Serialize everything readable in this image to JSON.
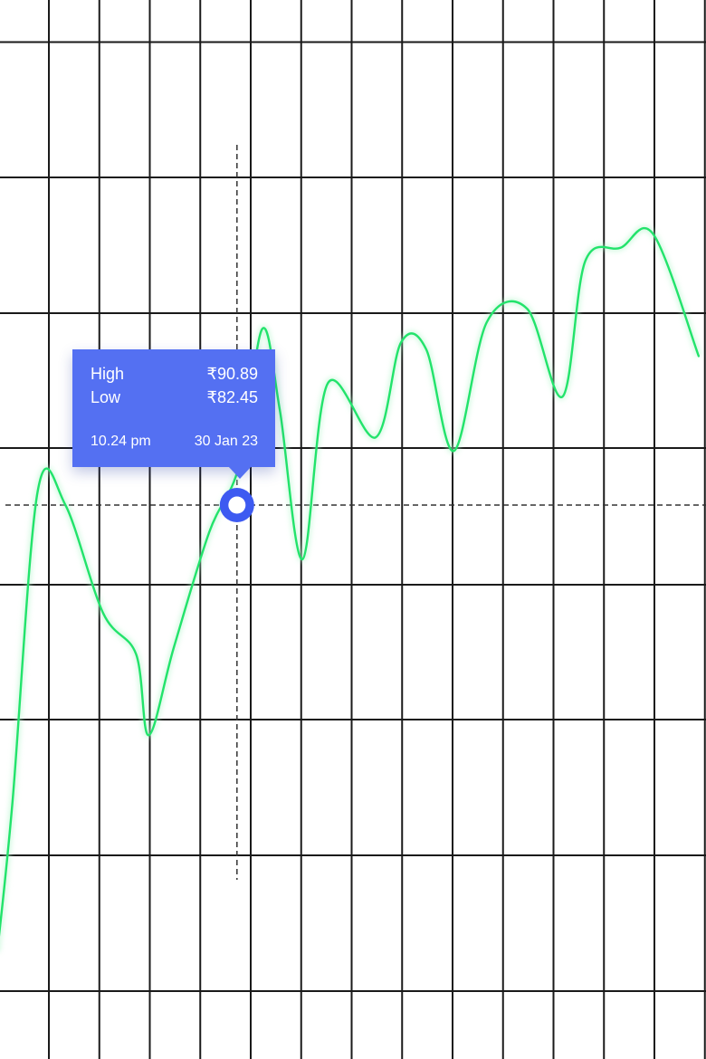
{
  "tooltip": {
    "high_label": "High",
    "high_value": "₹90.89",
    "low_label": "Low",
    "low_value": "₹82.45",
    "time": "10.24 pm",
    "date": "30 Jan 23"
  },
  "colors": {
    "line": "#22e36b",
    "line_glow": "#aef5c8",
    "tooltip_bg": "#5470f2",
    "marker": "#3d5af1",
    "grid": "#1a1a1a",
    "crosshair": "#333333"
  },
  "chart_data": {
    "type": "line",
    "title": "",
    "xlabel": "",
    "ylabel": "",
    "grid": true,
    "x": [
      0.0,
      0.3,
      0.8,
      1.35,
      2.1,
      2.75,
      3.0,
      3.5,
      4.2,
      4.8,
      5.25,
      5.6,
      6.05,
      6.55,
      7.5,
      8.0,
      8.5,
      9.05,
      9.7,
      10.5,
      11.2,
      11.65,
      12.35,
      13.0,
      13.9
    ],
    "values": [
      -3.3,
      -2.2,
      0.1,
      0.0,
      -0.8,
      -1.1,
      -1.7,
      -1.05,
      -0.2,
      0.3,
      1.3,
      0.7,
      -0.4,
      0.9,
      0.5,
      1.2,
      1.15,
      0.4,
      1.35,
      1.45,
      0.8,
      1.8,
      1.9,
      2.0,
      1.1
    ],
    "highlight": {
      "x": 4.75,
      "y": 0.0
    }
  }
}
